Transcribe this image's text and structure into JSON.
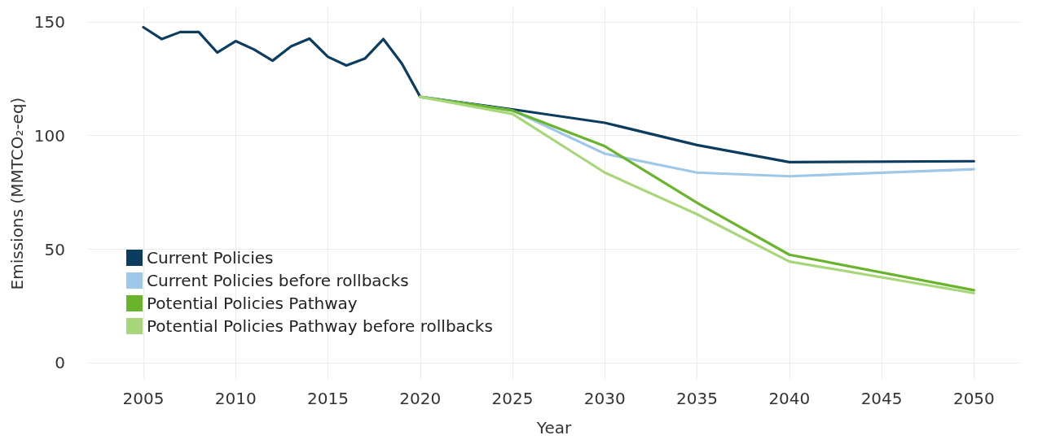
{
  "chart_data": {
    "type": "line",
    "xlabel": "Year",
    "ylabel": "Emissions (MMTCO₂-eq)",
    "xlim": [
      2002,
      2052.5
    ],
    "xticks": [
      2005,
      2010,
      2015,
      2020,
      2025,
      2030,
      2035,
      2040,
      2045,
      2050
    ],
    "ylim": [
      -7,
      156
    ],
    "yticks": [
      0,
      50,
      100,
      150
    ],
    "grid": true,
    "legend": "bottom left",
    "marker": "none",
    "line_style": "solid",
    "series": [
      {
        "name": "Current Policies",
        "color": "#0d3d5e",
        "x": [
          2005,
          2006,
          2007,
          2008,
          2009,
          2010,
          2011,
          2012,
          2013,
          2014,
          2015,
          2016,
          2017,
          2018,
          2019,
          2020,
          2025,
          2030,
          2035,
          2040,
          2050
        ],
        "values": [
          147.6,
          142.4,
          145.5,
          145.5,
          136.5,
          141.5,
          137.8,
          132.9,
          139.2,
          142.6,
          134.6,
          130.8,
          133.8,
          142.4,
          131.7,
          117,
          111.5,
          105.6,
          95.8,
          88.3,
          88.7
        ]
      },
      {
        "name": "Current Policies before rollbacks",
        "color": "#9fc8e8",
        "x": [
          2020,
          2025,
          2030,
          2035,
          2040,
          2050
        ],
        "values": [
          117,
          111,
          92,
          83.7,
          82.1,
          85.2
        ]
      },
      {
        "name": "Potential Policies Pathway",
        "color": "#6ab42d",
        "x": [
          2020,
          2025,
          2030,
          2035,
          2040,
          2050
        ],
        "values": [
          117,
          111,
          95.3,
          70.4,
          47.6,
          32
        ]
      },
      {
        "name": "Potential Policies Pathway before rollbacks",
        "color": "#a7d77a",
        "x": [
          2020,
          2025,
          2030,
          2035,
          2040,
          2050
        ],
        "values": [
          117,
          109.5,
          83.7,
          65.4,
          44.6,
          30.7
        ]
      }
    ]
  }
}
